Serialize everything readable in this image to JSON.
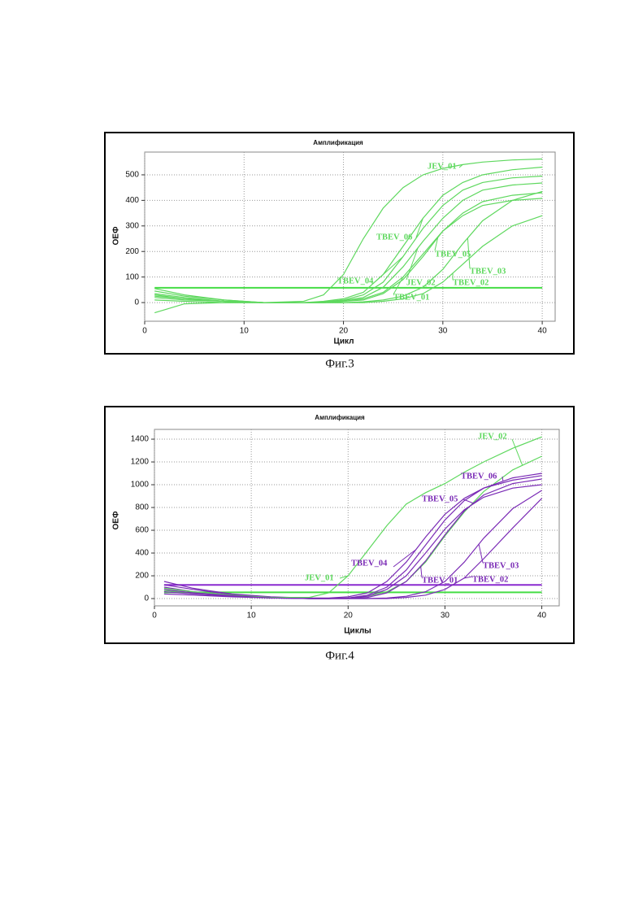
{
  "chart_data": [
    {
      "type": "line",
      "title": "Амплификация",
      "xlabel": "Цикл",
      "ylabel": "ОЕФ",
      "caption": "Фиг.3",
      "x": [
        1,
        4,
        8,
        12,
        16,
        18,
        20,
        22,
        24,
        26,
        28,
        30,
        32,
        34,
        37,
        40
      ],
      "series": [
        {
          "name": "JEV_01",
          "color": "#5ed85e",
          "values": [
            20,
            10,
            5,
            0,
            5,
            30,
            110,
            250,
            370,
            450,
            500,
            525,
            540,
            550,
            558,
            562
          ]
        },
        {
          "name": "TBEV_06",
          "color": "#5ed85e",
          "values": [
            30,
            15,
            5,
            0,
            0,
            5,
            15,
            40,
            110,
            220,
            330,
            420,
            470,
            500,
            520,
            530
          ]
        },
        {
          "name": "TBEV_05",
          "color": "#5ed85e",
          "values": [
            -40,
            -5,
            0,
            0,
            0,
            0,
            5,
            10,
            35,
            90,
            180,
            280,
            350,
            395,
            420,
            430
          ]
        },
        {
          "name": "TBEV_04",
          "color": "#5ed85e",
          "values": [
            45,
            25,
            10,
            0,
            0,
            3,
            10,
            30,
            80,
            180,
            290,
            380,
            440,
            470,
            488,
            495
          ]
        },
        {
          "name": "JEV_02",
          "color": "#5ed85e",
          "values": [
            35,
            20,
            5,
            0,
            0,
            0,
            8,
            20,
            60,
            140,
            240,
            330,
            400,
            440,
            460,
            468
          ]
        },
        {
          "name": "TBEV_03",
          "color": "#5ed85e",
          "values": [
            55,
            30,
            10,
            0,
            0,
            0,
            0,
            3,
            10,
            25,
            60,
            130,
            230,
            320,
            400,
            435
          ]
        },
        {
          "name": "TBEV_02",
          "color": "#5ed85e",
          "values": [
            25,
            15,
            5,
            0,
            0,
            0,
            0,
            0,
            5,
            15,
            35,
            80,
            150,
            220,
            300,
            340
          ]
        },
        {
          "name": "TBEV_01",
          "color": "#5ed85e",
          "values": [
            10,
            5,
            0,
            0,
            0,
            0,
            5,
            15,
            40,
            100,
            190,
            280,
            340,
            380,
            400,
            408
          ]
        }
      ],
      "thresholds": [
        {
          "value": 58,
          "color": "#44dd44"
        }
      ],
      "xlim": [
        0,
        41.3
      ],
      "ylim": [
        -73,
        589
      ],
      "xticks": [
        0,
        10,
        20,
        30,
        40
      ],
      "yticks": [
        0,
        100,
        200,
        300,
        400,
        500
      ],
      "grid": true
    },
    {
      "type": "line",
      "title": "Амплификация",
      "xlabel": "Циклы",
      "ylabel": "ОЕФ",
      "caption": "Фиг.4",
      "x": [
        1,
        4,
        8,
        12,
        16,
        18,
        20,
        22,
        24,
        26,
        28,
        30,
        32,
        34,
        37,
        40
      ],
      "series": [
        {
          "name": "JEV_02",
          "color": "#5ed85e",
          "values": [
            70,
            50,
            25,
            10,
            0,
            0,
            5,
            20,
            60,
            150,
            320,
            550,
            760,
            940,
            1130,
            1250
          ]
        },
        {
          "name": "TBEV_06",
          "color": "#7a2ab5",
          "values": [
            120,
            80,
            35,
            10,
            0,
            0,
            5,
            30,
            100,
            250,
            470,
            690,
            860,
            970,
            1060,
            1100
          ]
        },
        {
          "name": "TBEV_05",
          "color": "#7a2ab5",
          "values": [
            100,
            60,
            30,
            10,
            0,
            0,
            5,
            20,
            80,
            200,
            400,
            610,
            780,
            890,
            970,
            1000
          ]
        },
        {
          "name": "TBEV_04",
          "color": "#7a2ab5",
          "values": [
            150,
            90,
            40,
            15,
            5,
            5,
            15,
            50,
            150,
            320,
            540,
            740,
            880,
            970,
            1040,
            1080
          ]
        },
        {
          "name": "JEV_01",
          "color": "#5ed85e",
          "values": [
            90,
            60,
            30,
            10,
            10,
            50,
            200,
            420,
            640,
            830,
            930,
            1010,
            1110,
            1200,
            1320,
            1420
          ]
        },
        {
          "name": "TBEV_01",
          "color": "#7a2ab5",
          "values": [
            80,
            50,
            25,
            5,
            0,
            0,
            0,
            10,
            50,
            150,
            330,
            560,
            770,
            910,
            1010,
            1050
          ]
        },
        {
          "name": "TBEV_03",
          "color": "#7a2ab5",
          "values": [
            60,
            40,
            20,
            5,
            0,
            0,
            0,
            0,
            5,
            20,
            60,
            150,
            320,
            530,
            790,
            950
          ]
        },
        {
          "name": "TBEV_02",
          "color": "#7a2ab5",
          "values": [
            40,
            30,
            15,
            5,
            0,
            0,
            0,
            0,
            0,
            10,
            30,
            80,
            180,
            350,
            620,
            880
          ]
        }
      ],
      "thresholds": [
        {
          "value": 120,
          "color": "#8a2ad0"
        },
        {
          "value": 55,
          "color": "#44dd44"
        }
      ],
      "xlim": [
        0,
        41.8
      ],
      "ylim": [
        -64,
        1486
      ],
      "xticks": [
        0,
        10,
        20,
        30,
        40
      ],
      "yticks": [
        0,
        200,
        400,
        600,
        800,
        1000,
        1200,
        1400
      ],
      "grid": true
    }
  ]
}
